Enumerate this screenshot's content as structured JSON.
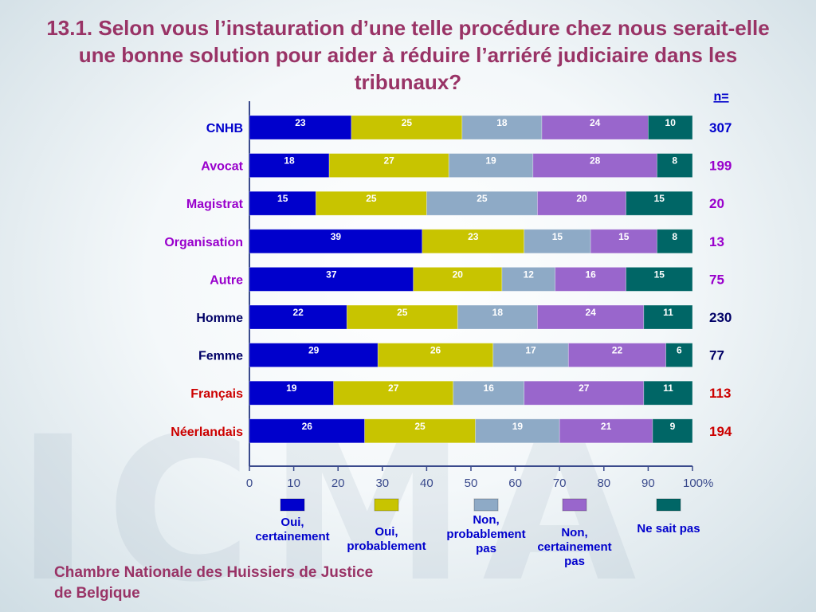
{
  "title": "13.1. Selon vous l’instauration d’une telle procédure chez nous serait-elle une bonne solution pour aider à réduire l’arriéré judiciaire dans les tribunaux?",
  "footer": "Chambre Nationale des Huissiers de Justice de Belgique",
  "watermark": "ICMA",
  "n_header": "n=",
  "colors": {
    "title": "#993366",
    "series": [
      "#0000cc",
      "#c8c400",
      "#8eaac6",
      "#9966cc",
      "#006666"
    ],
    "label_blue": "#0000cc",
    "label_purple": "#9900cc",
    "label_navy": "#000066",
    "label_red": "#cc0000"
  },
  "chart_data": {
    "type": "bar",
    "orientation": "horizontal",
    "stacked": true,
    "categories": [
      "CNHB",
      "Avocat",
      "Magistrat",
      "Organisation",
      "Autre",
      "Homme",
      "Femme",
      "Français",
      "Néerlandais"
    ],
    "category_colors": [
      "label_blue",
      "label_purple",
      "label_purple",
      "label_purple",
      "label_purple",
      "label_navy",
      "label_navy",
      "label_red",
      "label_red"
    ],
    "n": [
      "307",
      "199",
      "20",
      "13",
      "75",
      "230",
      "77",
      "113",
      "194"
    ],
    "series": [
      {
        "name": "Oui, certainement",
        "values": [
          23,
          18,
          15,
          39,
          37,
          22,
          29,
          19,
          26
        ]
      },
      {
        "name": "Oui, probablement",
        "values": [
          25,
          27,
          25,
          23,
          20,
          25,
          26,
          27,
          25
        ]
      },
      {
        "name": "Non, probablement pas",
        "values": [
          18,
          19,
          25,
          15,
          12,
          18,
          17,
          16,
          19
        ]
      },
      {
        "name": "Non, certainement pas",
        "values": [
          24,
          28,
          20,
          15,
          16,
          24,
          22,
          27,
          21
        ]
      },
      {
        "name": "Ne sait pas",
        "values": [
          10,
          8,
          15,
          8,
          15,
          11,
          6,
          11,
          9
        ]
      }
    ],
    "xlim": [
      0,
      100
    ],
    "xticks": [
      "0",
      "10",
      "20",
      "30",
      "40",
      "50",
      "60",
      "70",
      "80",
      "90",
      "100%"
    ],
    "legend_position": "bottom"
  }
}
